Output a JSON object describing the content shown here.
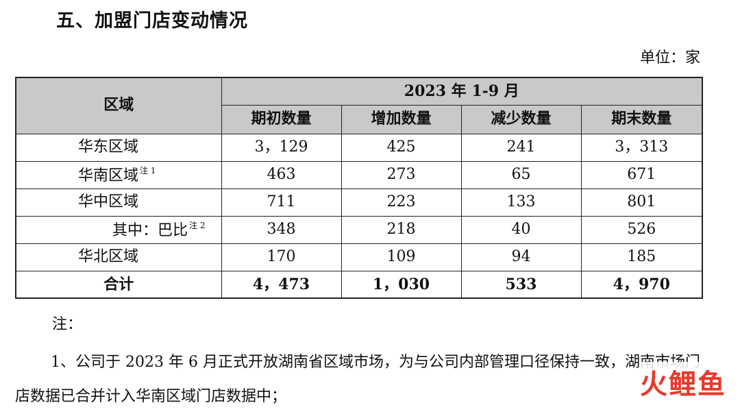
{
  "section_title": "五、加盟门店变动情况",
  "unit_label": "单位：家",
  "table": {
    "region_header": "区域",
    "period_header": "2023 年 1-9 月",
    "columns": [
      "期初数量",
      "增加数量",
      "减少数量",
      "期末数量"
    ],
    "rows": [
      {
        "region": "华东区域",
        "note": "",
        "values": [
          "3，129",
          "425",
          "241",
          "3，313"
        ]
      },
      {
        "region": "华南区域",
        "note": "注 1",
        "values": [
          "463",
          "273",
          "65",
          "671"
        ]
      },
      {
        "region": "华中区域",
        "note": "",
        "values": [
          "711",
          "223",
          "133",
          "801"
        ]
      },
      {
        "region": "其中：巴比",
        "note": "注 2",
        "values": [
          "348",
          "218",
          "40",
          "526"
        ]
      },
      {
        "region": "华北区域",
        "note": "",
        "values": [
          "170",
          "109",
          "94",
          "185"
        ]
      }
    ],
    "total": {
      "region": "合计",
      "values": [
        "4，473",
        "1，030",
        "533",
        "4，970"
      ]
    }
  },
  "notes_label": "注：",
  "note_1": "1、公司于 2023 年 6 月正式开放湖南省区域市场，为与公司内部管理口径保持一致，湖南市场门店数据已合并计入华南区域门店数据中；",
  "watermark": "火鲤鱼"
}
